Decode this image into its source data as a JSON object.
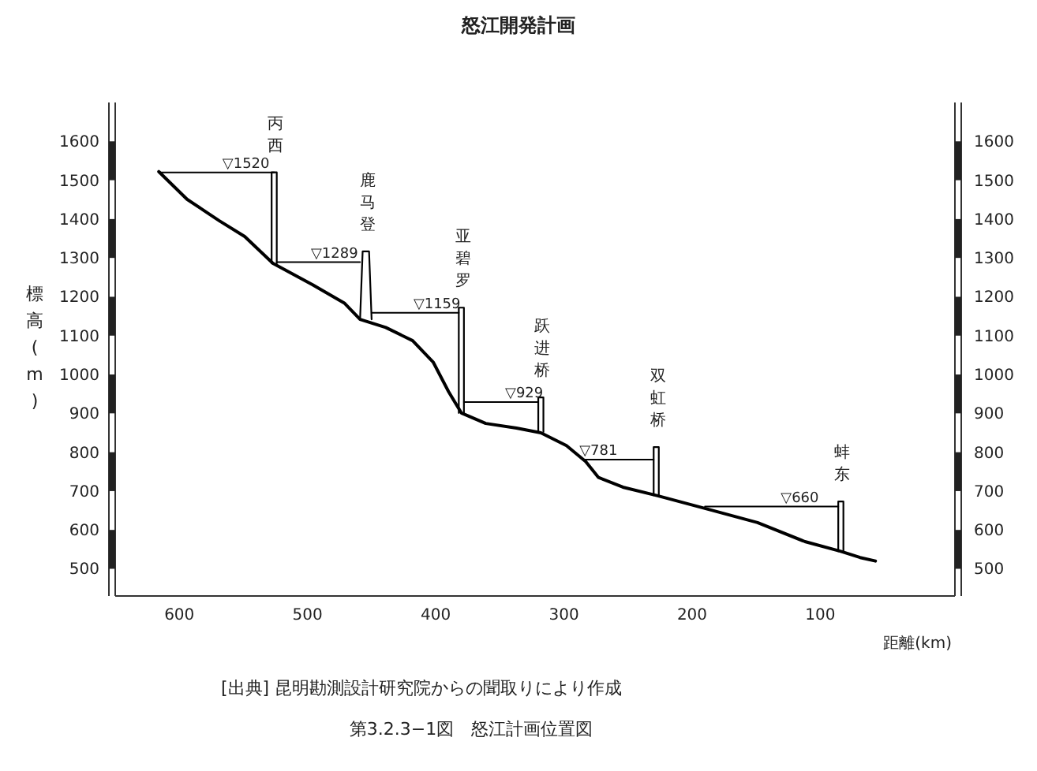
{
  "chart_data": {
    "type": "line",
    "title": "怒江開発計画",
    "xlabel": "距離(km)",
    "ylabel": "標高(m)",
    "xlim": [
      650,
      -5
    ],
    "xticks": [
      600,
      500,
      400,
      300,
      200,
      100
    ],
    "ylim": [
      430,
      1700
    ],
    "yticks": [
      500,
      600,
      700,
      800,
      900,
      1000,
      1100,
      1200,
      1300,
      1400,
      1500,
      1600
    ],
    "y2lim": [
      430,
      1700
    ],
    "y2ticks": [
      500,
      600,
      700,
      800,
      900,
      1000,
      1100,
      1200,
      1300,
      1400,
      1500,
      1600
    ],
    "series": [
      {
        "color": "#000000",
        "x": [
          616,
          594,
          569,
          549,
          527,
          496,
          471,
          459,
          439,
          418,
          402,
          390,
          380,
          361,
          337,
          318,
          298,
          283,
          273,
          254,
          228,
          186,
          149,
          112,
          84,
          69,
          57
        ],
        "values": [
          1522,
          1451,
          1396,
          1355,
          1286,
          1231,
          1183,
          1142,
          1121,
          1087,
          1032,
          956,
          901,
          874,
          862,
          850,
          817,
          776,
          735,
          710,
          689,
          652,
          619,
          570,
          545,
          529,
          520
        ]
      },
      {
        "color": "#000000",
        "x": [
          616,
          526
        ],
        "values": [
          1520,
          1520
        ]
      },
      {
        "color": "#000000",
        "x": [
          524,
          459
        ],
        "values": [
          1289,
          1289
        ]
      },
      {
        "color": "#000000",
        "x": [
          450,
          382
        ],
        "values": [
          1159,
          1159
        ]
      },
      {
        "color": "#000000",
        "x": [
          378,
          320
        ],
        "values": [
          929,
          929
        ]
      },
      {
        "color": "#000000",
        "x": [
          285,
          230
        ],
        "values": [
          781,
          781
        ]
      },
      {
        "color": "#000000",
        "x": [
          190,
          86
        ],
        "values": [
          660,
          660
        ]
      },
      {
        "name": "丙西",
        "color": "#000000",
        "x": [
          528,
          528,
          524,
          524
        ],
        "values": [
          1286,
          1520,
          1520,
          1286
        ]
      },
      {
        "name": "鹿马登",
        "color": "#000000",
        "x": [
          459,
          457,
          452,
          450
        ],
        "values": [
          1142,
          1317,
          1317,
          1142
        ]
      },
      {
        "name": "亚碧罗",
        "color": "#000000",
        "x": [
          382,
          382,
          378,
          378
        ],
        "values": [
          901,
          1172,
          1172,
          901
        ]
      },
      {
        "name": "跃进桥",
        "color": "#000000",
        "x": [
          320,
          320,
          316,
          316
        ],
        "values": [
          852,
          941,
          941,
          852
        ]
      },
      {
        "name": "双虹桥",
        "color": "#000000",
        "x": [
          230,
          230,
          226,
          226
        ],
        "values": [
          689,
          813,
          813,
          689
        ]
      },
      {
        "name": "蚌东",
        "color": "#000000",
        "x": [
          86,
          86,
          82,
          82
        ],
        "values": [
          545,
          673,
          673,
          545
        ]
      }
    ],
    "annotations": [
      {
        "text": "▽1520",
        "x": 548,
        "y": 1520
      },
      {
        "text": "▽1289",
        "x": 479,
        "y": 1289
      },
      {
        "text": "▽1159",
        "x": 399,
        "y": 1159
      },
      {
        "text": "▽929",
        "x": 331,
        "y": 929
      },
      {
        "text": "▽781",
        "x": 273,
        "y": 781
      },
      {
        "text": "▽660",
        "x": 116,
        "y": 660
      },
      "[出典] 昆明勘測設計研究院からの聞取りにより作成",
      "第3.2.3−1図　怒江計画位置図"
    ]
  }
}
